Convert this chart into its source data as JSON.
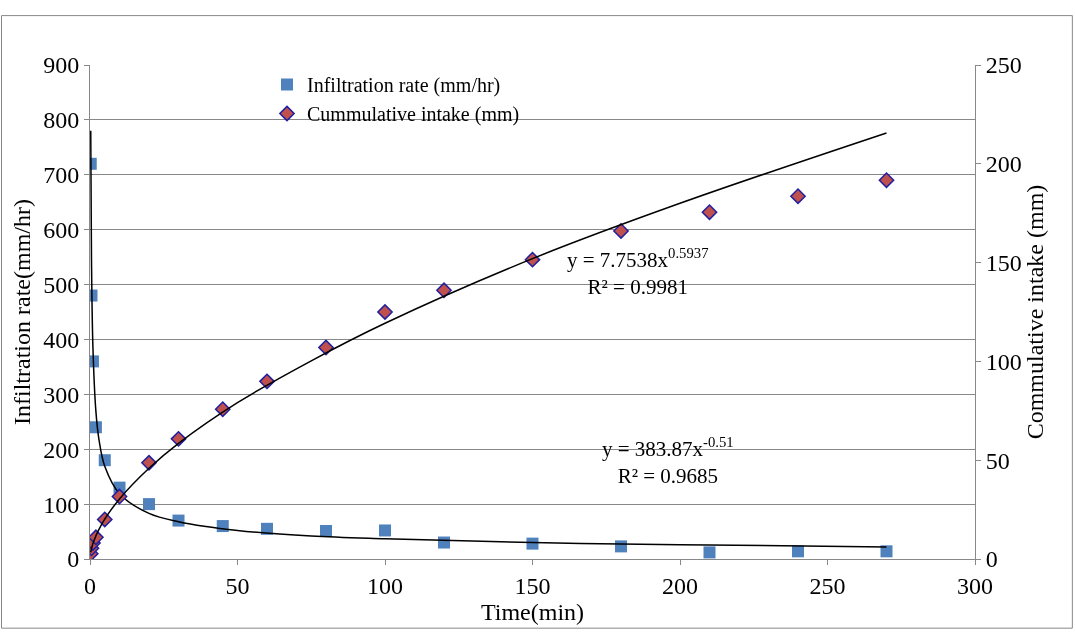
{
  "chart_data": {
    "type": "scatter",
    "xlabel": "Time(min)",
    "ylabel": "Infiltration rate(mm/hr)",
    "y2label": "Commulative intake (mm)",
    "x": [
      0.25,
      0.5,
      1,
      2,
      5,
      10,
      20,
      30,
      45,
      60,
      80,
      100,
      120,
      150,
      180,
      210,
      240,
      270
    ],
    "series": [
      {
        "name": "Infiltration rate (mm/hr)",
        "color": "#4f81bd",
        "marker": "square",
        "values": [
          720,
          480,
          360,
          240,
          180,
          130,
          100,
          70,
          60,
          55,
          51,
          52,
          30,
          28,
          23,
          12,
          14,
          14
        ]
      },
      {
        "name": "Cummulative intake (mm)",
        "color": "#c0504d",
        "marker": "diamond",
        "axis": "y2",
        "values": [
          2.7,
          5.4,
          8.1,
          11,
          20,
          31.6,
          48.7,
          60.8,
          75.8,
          89.9,
          107,
          125,
          136,
          151.5,
          166,
          175.5,
          183.6,
          191.7
        ]
      },
      {
        "type": "line",
        "color": "#000000",
        "marker": "none",
        "x": [
          0.25,
          0.5,
          1,
          2,
          3,
          5,
          10,
          20,
          30,
          50,
          75,
          100,
          150,
          200,
          270
        ],
        "values": [
          780,
          547,
          384,
          269,
          219,
          169,
          119,
          83,
          68,
          52,
          42,
          37,
          30,
          26,
          22
        ]
      },
      {
        "type": "line",
        "color": "#000000",
        "marker": "none",
        "axis": "y2",
        "x": [
          0.25,
          0.5,
          1,
          2,
          3,
          5,
          10,
          20,
          30,
          50,
          75,
          100,
          150,
          200,
          270
        ],
        "values": [
          3.4,
          5.1,
          7.8,
          11.7,
          14.9,
          20.2,
          30.4,
          45.9,
          58.5,
          79.1,
          100.3,
          119.3,
          152,
          180,
          215.6
        ]
      }
    ],
    "xlim": [
      0,
      300
    ],
    "xticks": [
      0,
      50,
      100,
      150,
      200,
      250,
      300
    ],
    "ylim": [
      0,
      900
    ],
    "yticks": [
      0,
      100,
      200,
      300,
      400,
      500,
      600,
      700,
      800,
      900
    ],
    "y2lim": [
      0,
      250
    ],
    "y2ticks": [
      0,
      50,
      100,
      150,
      200,
      250
    ],
    "annotations": [
      "y = 7.7538x$^{0.5937}$\nR² = 0.9981",
      "y = 383.87x$^{-0.51}$\nR² = 0.9685"
    ],
    "grid": "y",
    "legend": "top"
  }
}
